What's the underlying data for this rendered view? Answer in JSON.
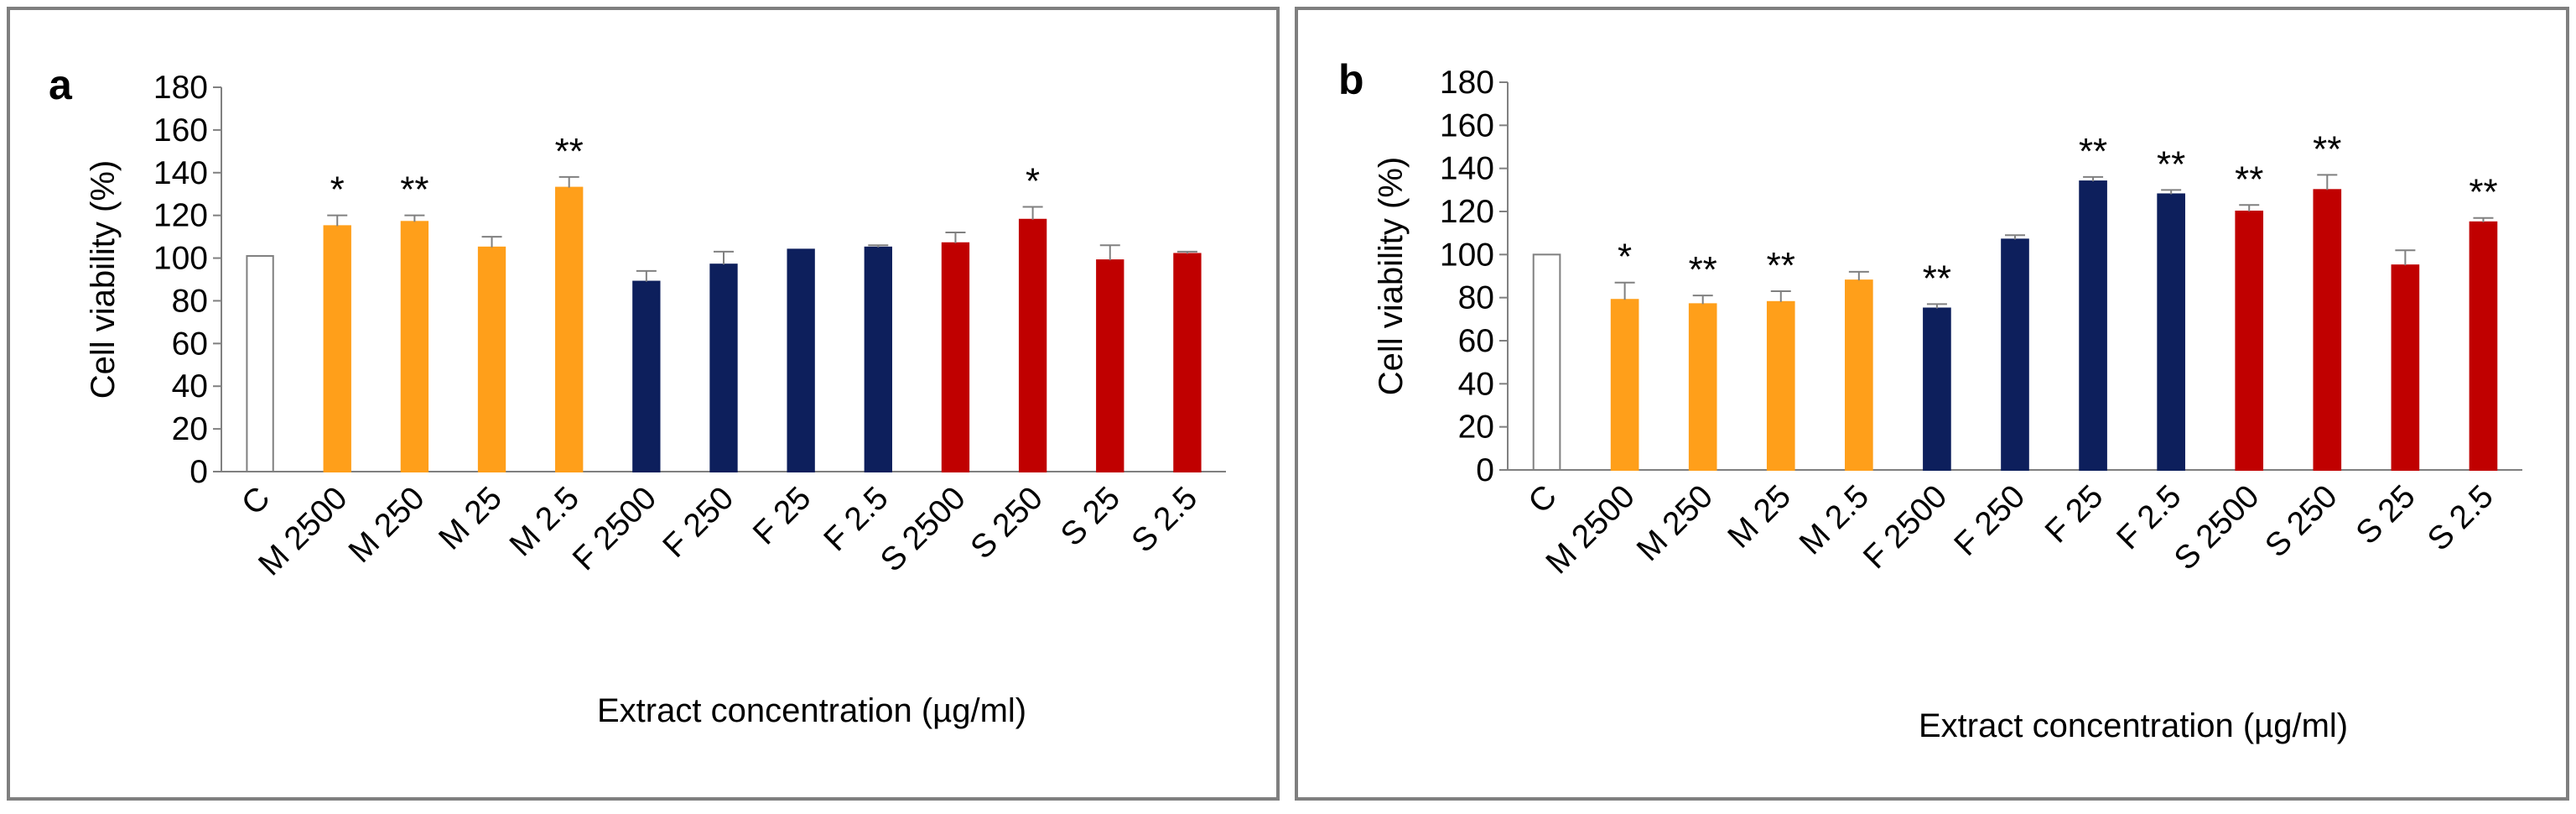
{
  "chart_data": [
    {
      "type": "bar",
      "panel_label": "a",
      "xlabel": "Extract concentration (µg/ml)",
      "ylabel": "Cell viability  (%)",
      "ylim": [
        0,
        180
      ],
      "yticks": [
        "0",
        "20",
        "40",
        "60",
        "80",
        "100",
        "120",
        "140",
        "160",
        "180"
      ],
      "categories": [
        "C",
        "M 2500",
        "M 250",
        "M 25",
        "M 2.5",
        "F 2500",
        "F 250",
        "F 25",
        "F 2.5",
        "S 2500",
        "S 250",
        "S 25",
        "S 2.5"
      ],
      "values": [
        101,
        115,
        117,
        105,
        133,
        89,
        97,
        104,
        105,
        107,
        118,
        99,
        102
      ],
      "errors": [
        0,
        5,
        3,
        5,
        5,
        5,
        6,
        0,
        1,
        5,
        6,
        7,
        1
      ],
      "significance": [
        "",
        "*",
        "**",
        "",
        "**",
        "",
        "",
        "",
        "",
        "",
        "*",
        "",
        ""
      ],
      "bar_colors": [
        "#ffffff",
        "#ff9f1a",
        "#ff9f1a",
        "#ff9f1a",
        "#ff9f1a",
        "#0d1f5c",
        "#0d1f5c",
        "#0d1f5c",
        "#0d1f5c",
        "#c00000",
        "#c00000",
        "#c00000",
        "#c00000"
      ]
    },
    {
      "type": "bar",
      "panel_label": "b",
      "xlabel": "Extract concentration (µg/ml)",
      "ylabel": "Cell viability  (%)",
      "ylim": [
        0,
        180
      ],
      "yticks": [
        "0",
        "20",
        "40",
        "60",
        "80",
        "100",
        "120",
        "140",
        "160",
        "180"
      ],
      "categories": [
        "C",
        "M 2500",
        "M 250",
        "M 25",
        "M 2.5",
        "F 2500",
        "F 250",
        "F 25",
        "F 2.5",
        "S 2500",
        "S 250",
        "S 25",
        "S 2.5"
      ],
      "values": [
        100,
        79,
        77,
        78,
        88,
        75,
        107,
        134,
        128,
        120,
        130,
        95,
        115
      ],
      "errors": [
        0,
        8,
        4,
        5,
        4,
        2,
        2,
        2,
        2,
        3,
        7,
        7,
        2
      ],
      "significance": [
        "",
        "*",
        "**",
        "**",
        "",
        "**",
        "",
        "**",
        "**",
        "**",
        "**",
        "",
        "**"
      ],
      "bar_colors": [
        "#ffffff",
        "#ff9f1a",
        "#ff9f1a",
        "#ff9f1a",
        "#ff9f1a",
        "#0d1f5c",
        "#0d1f5c",
        "#0d1f5c",
        "#0d1f5c",
        "#c00000",
        "#c00000",
        "#c00000",
        "#c00000"
      ]
    }
  ]
}
